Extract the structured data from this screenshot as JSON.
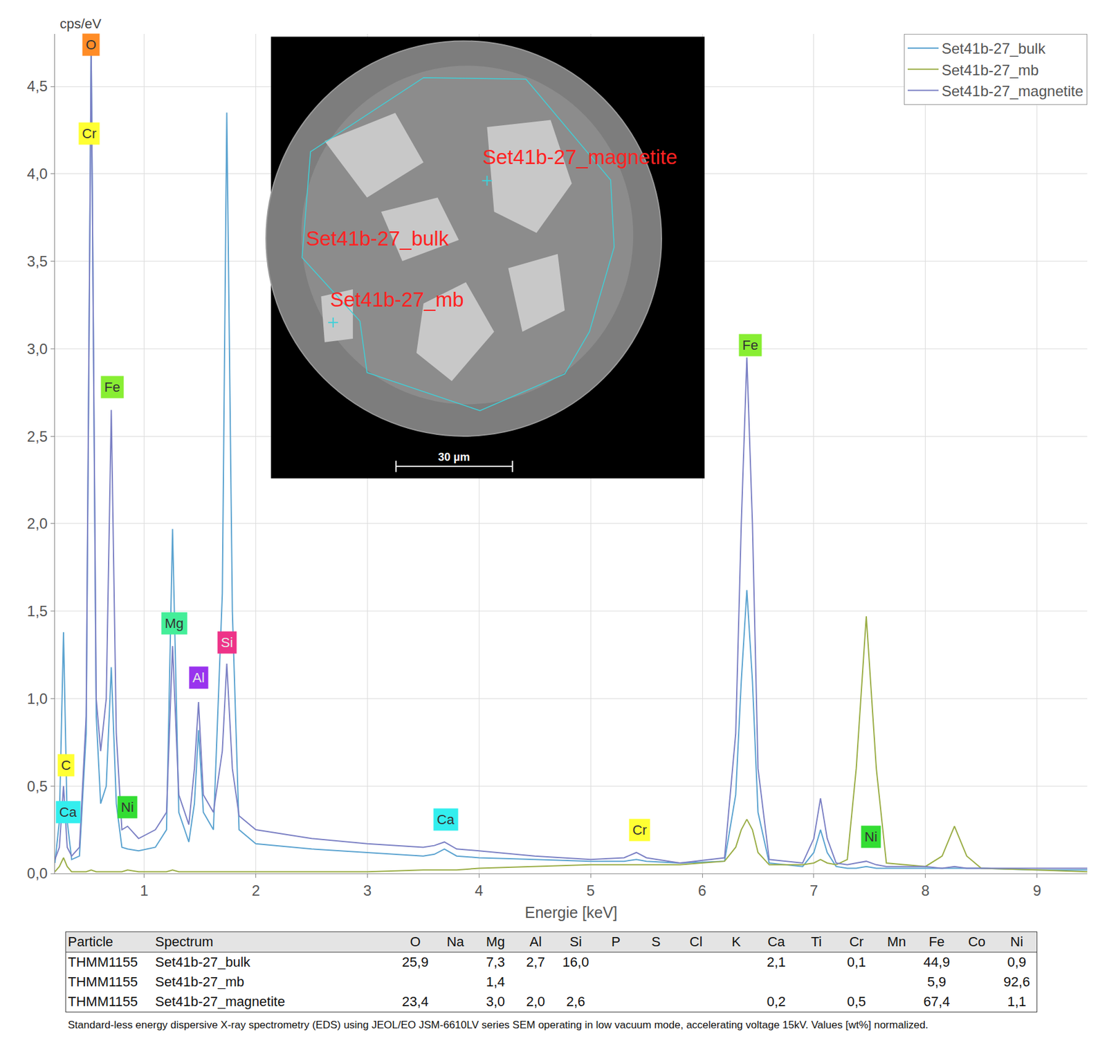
{
  "chart_data": {
    "type": "line",
    "xlabel": "Energie [keV]",
    "ylabel": "cps/eV",
    "x": [
      0.2,
      0.24,
      0.277,
      0.31,
      0.35,
      0.42,
      0.48,
      0.525,
      0.57,
      0.61,
      0.66,
      0.705,
      0.75,
      0.8,
      0.851,
      0.95,
      1.1,
      1.2,
      1.254,
      1.31,
      1.4,
      1.45,
      1.487,
      1.53,
      1.62,
      1.7,
      1.74,
      1.79,
      1.85,
      2.0,
      2.5,
      3.0,
      3.5,
      3.6,
      3.69,
      3.8,
      4.0,
      4.5,
      5.0,
      5.3,
      5.41,
      5.5,
      5.8,
      6.2,
      6.3,
      6.35,
      6.4,
      6.45,
      6.5,
      6.6,
      6.9,
      7.0,
      7.06,
      7.12,
      7.2,
      7.3,
      7.38,
      7.47,
      7.56,
      7.65,
      8.0,
      8.15,
      8.26,
      8.37,
      8.5,
      9.0,
      9.45
    ],
    "series": [
      {
        "name": "Set41b-27_bulk",
        "color": "#5ba3d0",
        "values": [
          0.06,
          0.3,
          1.38,
          0.3,
          0.08,
          0.1,
          0.8,
          4.75,
          0.9,
          0.4,
          0.5,
          1.18,
          0.4,
          0.15,
          0.14,
          0.13,
          0.15,
          0.25,
          1.97,
          0.35,
          0.18,
          0.4,
          0.82,
          0.35,
          0.25,
          1.6,
          4.35,
          1.5,
          0.25,
          0.17,
          0.14,
          0.12,
          0.1,
          0.11,
          0.14,
          0.1,
          0.09,
          0.08,
          0.07,
          0.07,
          0.08,
          0.07,
          0.06,
          0.07,
          0.45,
          1.1,
          1.62,
          1.1,
          0.35,
          0.06,
          0.04,
          0.12,
          0.25,
          0.12,
          0.04,
          0.03,
          0.03,
          0.04,
          0.03,
          0.03,
          0.03,
          0.03,
          0.03,
          0.03,
          0.03,
          0.02,
          0.02
        ]
      },
      {
        "name": "Set41b-27_mb",
        "color": "#9aad45",
        "values": [
          0.01,
          0.04,
          0.09,
          0.04,
          0.01,
          0.01,
          0.01,
          0.02,
          0.01,
          0.01,
          0.01,
          0.01,
          0.01,
          0.01,
          0.02,
          0.01,
          0.01,
          0.01,
          0.02,
          0.01,
          0.01,
          0.01,
          0.01,
          0.01,
          0.01,
          0.01,
          0.01,
          0.01,
          0.01,
          0.01,
          0.01,
          0.01,
          0.02,
          0.02,
          0.02,
          0.02,
          0.03,
          0.04,
          0.05,
          0.05,
          0.05,
          0.05,
          0.05,
          0.07,
          0.15,
          0.25,
          0.31,
          0.25,
          0.12,
          0.05,
          0.05,
          0.06,
          0.08,
          0.06,
          0.05,
          0.08,
          0.6,
          1.47,
          0.6,
          0.06,
          0.04,
          0.1,
          0.27,
          0.1,
          0.03,
          0.02,
          0.01
        ]
      },
      {
        "name": "Set41b-27_magnetite",
        "color": "#7b80c4",
        "values": [
          0.08,
          0.15,
          0.5,
          0.15,
          0.1,
          0.15,
          0.9,
          4.7,
          1.0,
          0.7,
          1.0,
          2.65,
          0.8,
          0.25,
          0.27,
          0.2,
          0.25,
          0.35,
          1.3,
          0.45,
          0.28,
          0.6,
          0.98,
          0.45,
          0.35,
          0.7,
          1.2,
          0.6,
          0.33,
          0.25,
          0.2,
          0.17,
          0.15,
          0.16,
          0.18,
          0.14,
          0.13,
          0.1,
          0.08,
          0.09,
          0.12,
          0.09,
          0.06,
          0.09,
          0.8,
          2.0,
          2.95,
          2.0,
          0.6,
          0.08,
          0.06,
          0.2,
          0.43,
          0.2,
          0.06,
          0.05,
          0.06,
          0.07,
          0.05,
          0.04,
          0.04,
          0.03,
          0.04,
          0.03,
          0.03,
          0.03,
          0.03
        ]
      }
    ],
    "xlim": [
      0.2,
      9.45
    ],
    "xticks": [
      1,
      2,
      3,
      4,
      5,
      6,
      7,
      8,
      9
    ],
    "ylim": [
      0,
      4.8
    ],
    "yticks": [
      {
        "value": 0,
        "label": "0,0"
      },
      {
        "value": 0.5,
        "label": "0,5"
      },
      {
        "value": 1,
        "label": "1,0"
      },
      {
        "value": 1.5,
        "label": "1,5"
      },
      {
        "value": 2,
        "label": "2,0"
      },
      {
        "value": 2.5,
        "label": "2,5"
      },
      {
        "value": 3,
        "label": "3,0"
      },
      {
        "value": 3.5,
        "label": "3,5"
      },
      {
        "value": 4,
        "label": "4,0"
      },
      {
        "value": 4.5,
        "label": "4,5"
      }
    ],
    "grid": true,
    "legend": "top right",
    "annotations": [
      {
        "text": "O",
        "x": 0.525,
        "y": 4.74,
        "color": "#ff8c26"
      },
      {
        "text": "Cr",
        "x": 0.506,
        "y": 4.23,
        "color": "#ffff33"
      },
      {
        "text": "Fe",
        "x": 0.715,
        "y": 2.78,
        "color": "#88ee33"
      },
      {
        "text": "C",
        "x": 0.3,
        "y": 0.62,
        "color": "#ffff33"
      },
      {
        "text": "Ca",
        "x": 0.32,
        "y": 0.35,
        "color": "#33eeee"
      },
      {
        "text": "Ni",
        "x": 0.85,
        "y": 0.38,
        "color": "#33dd33"
      },
      {
        "text": "Mg",
        "x": 1.27,
        "y": 1.43,
        "color": "#44ee99"
      },
      {
        "text": "Al",
        "x": 1.49,
        "y": 1.12,
        "color": "#9933ee"
      },
      {
        "text": "Si",
        "x": 1.74,
        "y": 1.32,
        "color": "#ee3388"
      },
      {
        "text": "Ca",
        "x": 3.7,
        "y": 0.31,
        "color": "#33eeee"
      },
      {
        "text": "Cr",
        "x": 5.44,
        "y": 0.25,
        "color": "#ffff33"
      },
      {
        "text": "Fe",
        "x": 6.43,
        "y": 3.02,
        "color": "#88ee33"
      },
      {
        "text": "Ni",
        "x": 7.51,
        "y": 0.21,
        "color": "#33dd33"
      }
    ],
    "inset": {
      "labels": [
        "Set41b-27_magnetite",
        "Set41b-27_bulk",
        "Set41b-27_mb"
      ],
      "scale_bar": "30 µm"
    }
  },
  "table": {
    "header": [
      "Particle",
      "Spectrum",
      "O",
      "Na",
      "Mg",
      "Al",
      "Si",
      "P",
      "S",
      "Cl",
      "K",
      "Ca",
      "Ti",
      "Cr",
      "Mn",
      "Fe",
      "Co",
      "Ni"
    ],
    "rows": [
      [
        "THMM1155",
        "Set41b-27_bulk",
        "25,9",
        null,
        "7,3",
        "2,7",
        "16,0",
        null,
        null,
        null,
        null,
        "2,1",
        null,
        "0,1",
        null,
        "44,9",
        null,
        "0,9"
      ],
      [
        "THMM1155",
        "Set41b-27_mb",
        null,
        null,
        "1,4",
        null,
        null,
        null,
        null,
        null,
        null,
        null,
        null,
        null,
        null,
        "5,9",
        null,
        "92,6"
      ],
      [
        "THMM1155",
        "Set41b-27_magnetite",
        "23,4",
        null,
        "3,0",
        "2,0",
        "2,6",
        null,
        null,
        null,
        null,
        "0,2",
        null,
        "0,5",
        null,
        "67,4",
        null,
        "1,1"
      ]
    ]
  },
  "footnote": "Standard-less energy dispersive X-ray spectrometry (EDS) using JEOL/EO JSM-6610LV series SEM operating in low vacuum mode, accelerating voltage 15kV. Values [wt%] normalized."
}
